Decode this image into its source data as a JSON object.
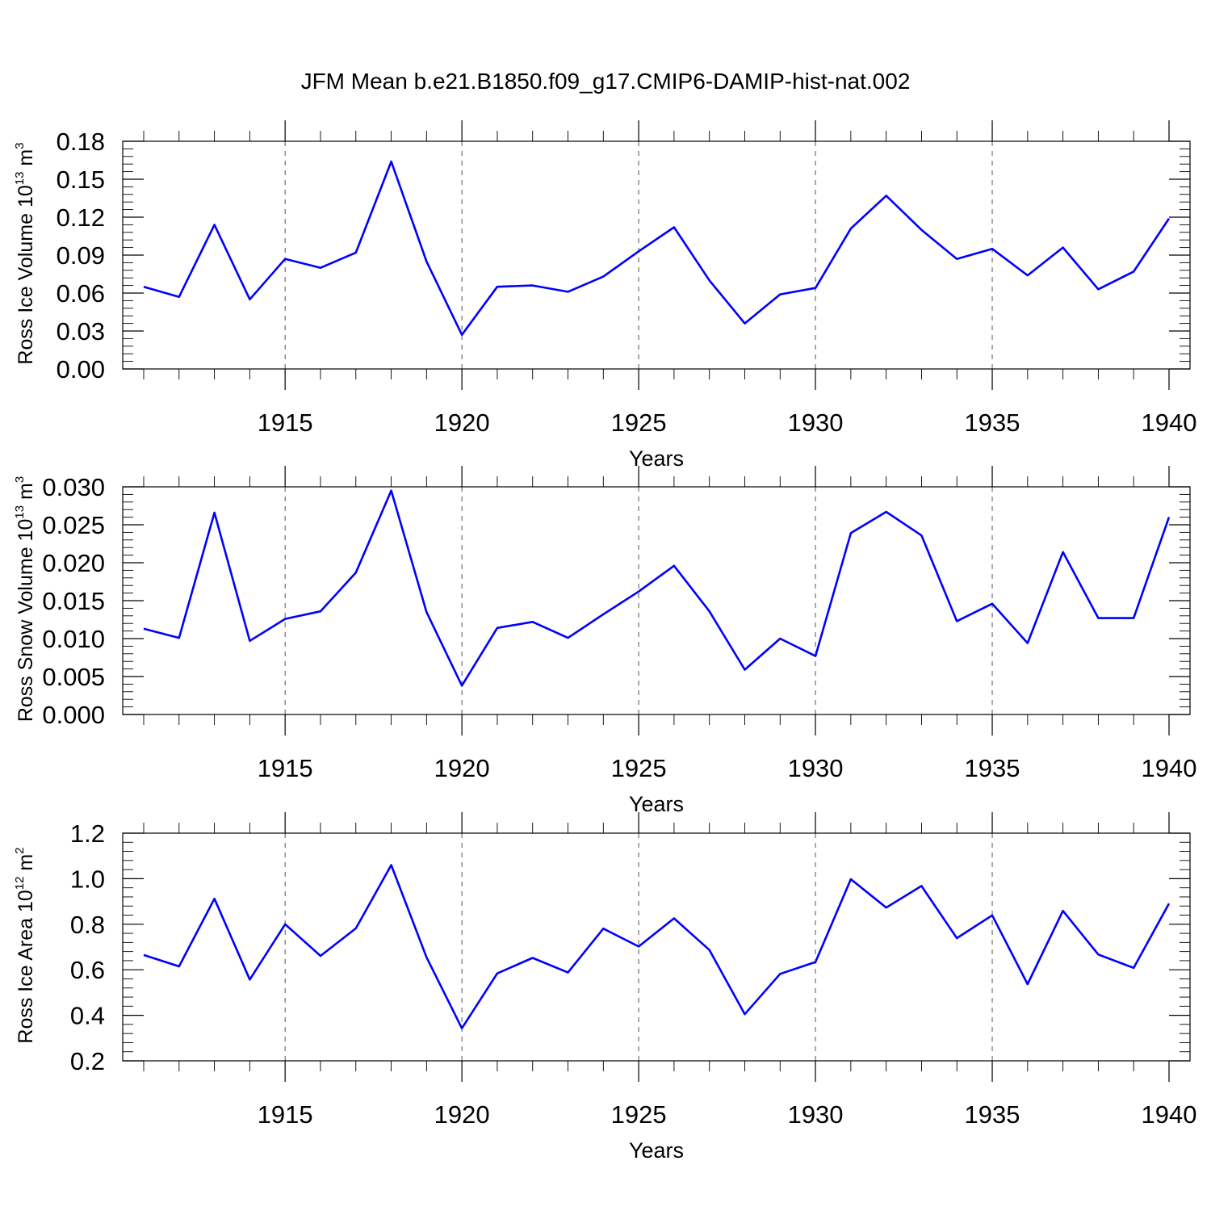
{
  "title": "JFM Mean b.e21.B1850.f09_g17.CMIP6-DAMIP-hist-nat.002",
  "colors": {
    "series": "#0000ff",
    "axes": "#000000",
    "grid": "#555555"
  },
  "chart_data": [
    {
      "type": "line",
      "xlabel": "Years",
      "ylabel": {
        "text": "Ross Ice Volume 10",
        "sup": "13",
        "unit": " m",
        "unit_sup": "3"
      },
      "xlim": [
        1911,
        1940
      ],
      "ylim": [
        0,
        0.18
      ],
      "xticks": [
        1915,
        1920,
        1925,
        1930,
        1935,
        1940
      ],
      "yticks": [
        0,
        0.03,
        0.06,
        0.09,
        0.12,
        0.15,
        0.18
      ],
      "ytick_labels": [
        "0.00",
        "0.03",
        "0.06",
        "0.09",
        "0.12",
        "0.15",
        "0.18"
      ],
      "grid": "vertical dashed at major x ticks",
      "x": [
        1911,
        1912,
        1913,
        1914,
        1915,
        1916,
        1917,
        1918,
        1919,
        1920,
        1921,
        1922,
        1923,
        1924,
        1925,
        1926,
        1927,
        1928,
        1929,
        1930,
        1931,
        1932,
        1933,
        1934,
        1935,
        1936,
        1937,
        1938,
        1939,
        1940
      ],
      "values": [
        0.065,
        0.057,
        0.114,
        0.055,
        0.087,
        0.08,
        0.092,
        0.164,
        0.085,
        0.027,
        0.065,
        0.066,
        0.061,
        0.073,
        0.093,
        0.112,
        0.07,
        0.036,
        0.059,
        0.064,
        0.111,
        0.137,
        0.11,
        0.087,
        0.095,
        0.074,
        0.096,
        0.063,
        0.077,
        0.119
      ]
    },
    {
      "type": "line",
      "xlabel": "Years",
      "ylabel": {
        "text": "Ross Snow Volume 10",
        "sup": "13",
        "unit": " m",
        "unit_sup": "3"
      },
      "xlim": [
        1911,
        1940
      ],
      "ylim": [
        0,
        0.03
      ],
      "xticks": [
        1915,
        1920,
        1925,
        1930,
        1935,
        1940
      ],
      "yticks": [
        0,
        0.005,
        0.01,
        0.015,
        0.02,
        0.025,
        0.03
      ],
      "ytick_labels": [
        "0.000",
        "0.005",
        "0.010",
        "0.015",
        "0.020",
        "0.025",
        "0.030"
      ],
      "grid": "vertical dashed at major x ticks",
      "x": [
        1911,
        1912,
        1913,
        1914,
        1915,
        1916,
        1917,
        1918,
        1919,
        1920,
        1921,
        1922,
        1923,
        1924,
        1925,
        1926,
        1927,
        1928,
        1929,
        1930,
        1931,
        1932,
        1933,
        1934,
        1935,
        1936,
        1937,
        1938,
        1939,
        1940
      ],
      "values": [
        0.0113,
        0.0101,
        0.0266,
        0.0097,
        0.0126,
        0.0136,
        0.0187,
        0.0295,
        0.0135,
        0.0038,
        0.0114,
        0.0122,
        0.0101,
        0.0132,
        0.0162,
        0.0196,
        0.0136,
        0.0059,
        0.01,
        0.0077,
        0.0239,
        0.0267,
        0.0236,
        0.0123,
        0.0146,
        0.0094,
        0.0214,
        0.0127,
        0.0127,
        0.026
      ]
    },
    {
      "type": "line",
      "xlabel": "Years",
      "ylabel": {
        "text": "Ross Ice Area 10",
        "sup": "12",
        "unit": " m",
        "unit_sup": "2"
      },
      "xlim": [
        1911,
        1940
      ],
      "ylim": [
        0.2,
        1.2
      ],
      "xticks": [
        1915,
        1920,
        1925,
        1930,
        1935,
        1940
      ],
      "yticks": [
        0.2,
        0.4,
        0.6,
        0.8,
        1.0,
        1.2
      ],
      "ytick_labels": [
        "0.2",
        "0.4",
        "0.6",
        "0.8",
        "1.0",
        "1.2"
      ],
      "grid": "vertical dashed at major x ticks",
      "x": [
        1911,
        1912,
        1913,
        1914,
        1915,
        1916,
        1917,
        1918,
        1919,
        1920,
        1921,
        1922,
        1923,
        1924,
        1925,
        1926,
        1927,
        1928,
        1929,
        1930,
        1931,
        1932,
        1933,
        1934,
        1935,
        1936,
        1937,
        1938,
        1939,
        1940
      ],
      "values": [
        0.665,
        0.615,
        0.912,
        0.557,
        0.8,
        0.661,
        0.782,
        1.06,
        0.655,
        0.343,
        0.584,
        0.652,
        0.588,
        0.781,
        0.702,
        0.826,
        0.687,
        0.405,
        0.582,
        0.634,
        0.998,
        0.873,
        0.968,
        0.739,
        0.839,
        0.537,
        0.859,
        0.667,
        0.608,
        0.891
      ]
    }
  ]
}
